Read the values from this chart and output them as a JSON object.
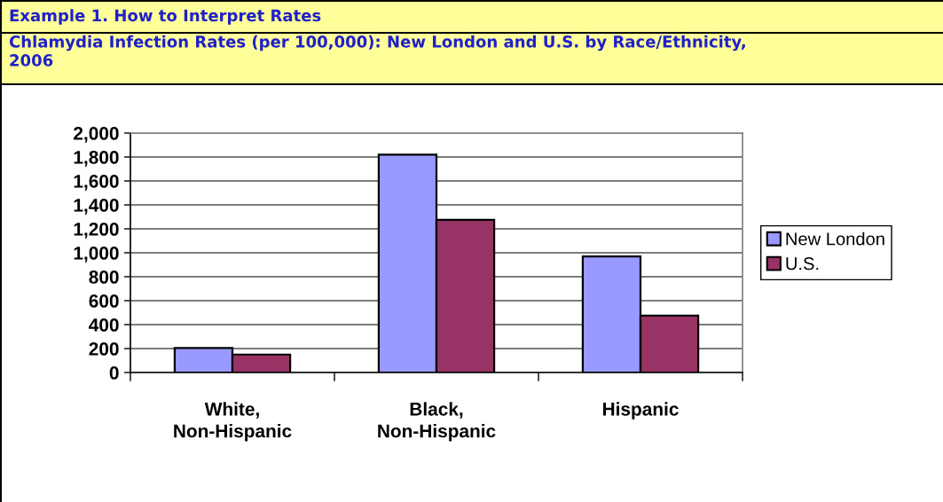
{
  "chart_data": {
    "type": "bar",
    "title": "Example 1. How to Interpret Rates",
    "subtitle": "Chlamydia Infection Rates (per 100,000): New London and U.S. by Race/Ethnicity,\n2006",
    "categories": [
      "White,\nNon-Hispanic",
      "Black,\nNon-Hispanic",
      "Hispanic"
    ],
    "series": [
      {
        "name": "New London",
        "color": "#9999ff",
        "values": [
          205,
          1820,
          970
        ]
      },
      {
        "name": "U.S.",
        "color": "#993366",
        "values": [
          150,
          1275,
          475
        ]
      }
    ],
    "ylim": [
      0,
      2000
    ],
    "yticks": [
      0,
      200,
      400,
      600,
      800,
      {
        "value": 1000,
        "label": "1,000"
      },
      {
        "value": 1200,
        "label": "1,200"
      },
      {
        "value": 1400,
        "label": "1,400"
      },
      {
        "value": 1600,
        "label": "1,600"
      },
      {
        "value": 1800,
        "label": "1,800"
      },
      {
        "value": 2000,
        "label": "2,000"
      }
    ],
    "grid": "y",
    "legend": "right"
  }
}
